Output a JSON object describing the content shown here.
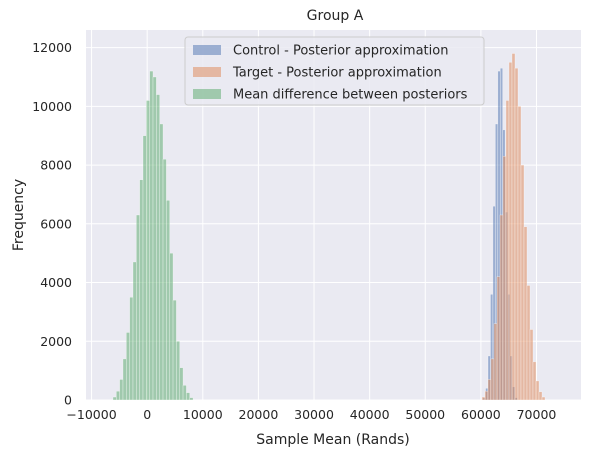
{
  "chart_data": {
    "type": "bar",
    "title": "Group A",
    "xlabel": "Sample Mean (Rands)",
    "ylabel": "Frequency",
    "xlim": [
      -11000,
      78000
    ],
    "ylim": [
      0,
      12600
    ],
    "xticks": [
      -10000,
      0,
      10000,
      20000,
      30000,
      40000,
      50000,
      60000,
      70000
    ],
    "xtick_labels": [
      "−10000",
      "0",
      "10000",
      "20000",
      "30000",
      "40000",
      "50000",
      "60000",
      "70000"
    ],
    "yticks": [
      0,
      2000,
      4000,
      6000,
      8000,
      10000,
      12000
    ],
    "ytick_labels": [
      "0",
      "2000",
      "4000",
      "6000",
      "8000",
      "10000",
      "12000"
    ],
    "grid": true,
    "legend_position": "top-center",
    "background": "#eaeaf2",
    "grid_color": "#ffffff",
    "series": [
      {
        "name": "Control - Posterior approximation",
        "color": "#4c72b0",
        "opacity": 0.5,
        "bins": [
          {
            "x": 60620,
            "y": 80
          },
          {
            "x": 61060,
            "y": 400
          },
          {
            "x": 61500,
            "y": 1500
          },
          {
            "x": 61940,
            "y": 3600
          },
          {
            "x": 62380,
            "y": 6600
          },
          {
            "x": 62820,
            "y": 9400
          },
          {
            "x": 63260,
            "y": 11200
          },
          {
            "x": 63700,
            "y": 11300
          },
          {
            "x": 64140,
            "y": 9200
          },
          {
            "x": 64580,
            "y": 6400
          },
          {
            "x": 65020,
            "y": 3600
          },
          {
            "x": 65460,
            "y": 1500
          },
          {
            "x": 65900,
            "y": 450
          },
          {
            "x": 66340,
            "y": 80
          }
        ]
      },
      {
        "name": "Target - Posterior approximation",
        "color": "#dd8452",
        "opacity": 0.5,
        "bins": [
          {
            "x": 60460,
            "y": 100
          },
          {
            "x": 61000,
            "y": 300
          },
          {
            "x": 61540,
            "y": 700
          },
          {
            "x": 62080,
            "y": 1400
          },
          {
            "x": 62620,
            "y": 2600
          },
          {
            "x": 63160,
            "y": 4200
          },
          {
            "x": 63700,
            "y": 6300
          },
          {
            "x": 64240,
            "y": 8300
          },
          {
            "x": 64780,
            "y": 10200
          },
          {
            "x": 65320,
            "y": 11500
          },
          {
            "x": 65860,
            "y": 11800
          },
          {
            "x": 66400,
            "y": 11300
          },
          {
            "x": 66940,
            "y": 10000
          },
          {
            "x": 67480,
            "y": 8000
          },
          {
            "x": 68020,
            "y": 5900
          },
          {
            "x": 68560,
            "y": 3900
          },
          {
            "x": 69100,
            "y": 2400
          },
          {
            "x": 69640,
            "y": 1300
          },
          {
            "x": 70180,
            "y": 650
          },
          {
            "x": 70720,
            "y": 280
          },
          {
            "x": 71260,
            "y": 100
          }
        ]
      },
      {
        "name": "Mean difference between posteriors",
        "color": "#55a868",
        "opacity": 0.5,
        "bins": [
          {
            "x": -5850,
            "y": 100
          },
          {
            "x": -5250,
            "y": 300
          },
          {
            "x": -4650,
            "y": 700
          },
          {
            "x": -4050,
            "y": 1400
          },
          {
            "x": -3450,
            "y": 2300
          },
          {
            "x": -2850,
            "y": 3500
          },
          {
            "x": -2250,
            "y": 4700
          },
          {
            "x": -1650,
            "y": 6300
          },
          {
            "x": -1050,
            "y": 7500
          },
          {
            "x": -450,
            "y": 9000
          },
          {
            "x": 150,
            "y": 10200
          },
          {
            "x": 750,
            "y": 11200
          },
          {
            "x": 1350,
            "y": 11000
          },
          {
            "x": 1950,
            "y": 10400
          },
          {
            "x": 2550,
            "y": 9400
          },
          {
            "x": 3150,
            "y": 8200
          },
          {
            "x": 3750,
            "y": 6800
          },
          {
            "x": 4350,
            "y": 5000
          },
          {
            "x": 4950,
            "y": 3400
          },
          {
            "x": 5550,
            "y": 2000
          },
          {
            "x": 6150,
            "y": 1100
          },
          {
            "x": 6750,
            "y": 500
          },
          {
            "x": 7350,
            "y": 250
          },
          {
            "x": 7950,
            "y": 80
          }
        ]
      }
    ]
  }
}
